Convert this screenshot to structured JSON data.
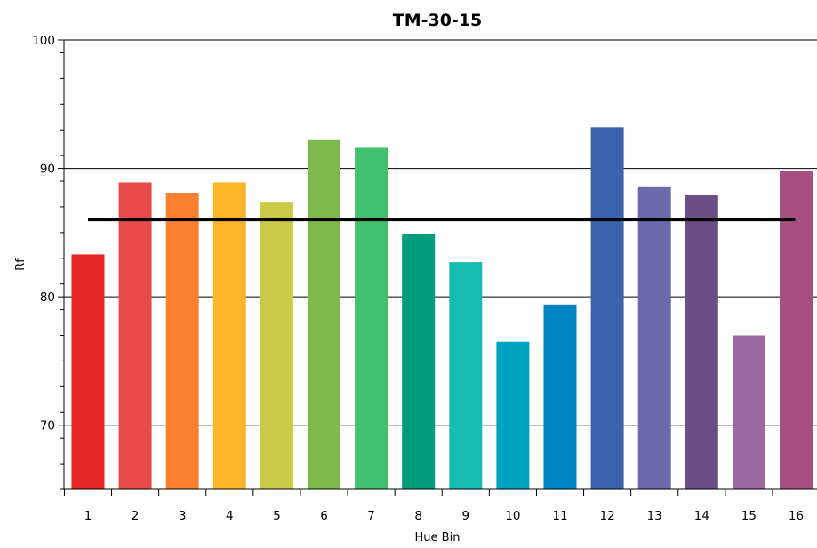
{
  "chart_data": {
    "type": "bar",
    "title": "TM-30-15",
    "xlabel": "Hue Bin",
    "ylabel": "Rf",
    "ylim": [
      65,
      100
    ],
    "yticks": [
      70,
      80,
      90,
      100
    ],
    "grid": true,
    "categories": [
      "1",
      "2",
      "3",
      "4",
      "5",
      "6",
      "7",
      "8",
      "9",
      "10",
      "11",
      "12",
      "13",
      "14",
      "15",
      "16"
    ],
    "values": [
      83.3,
      88.9,
      88.1,
      88.9,
      87.4,
      92.2,
      91.6,
      84.9,
      82.7,
      76.5,
      79.4,
      93.2,
      88.6,
      87.9,
      77.0,
      89.8
    ],
    "bar_colors": [
      "#e62828",
      "#e74b4b",
      "#fb812e",
      "#ffb529",
      "#cbca46",
      "#7eb94c",
      "#41c06d",
      "#009c7c",
      "#16bcb0",
      "#00a4bf",
      "#0085c3",
      "#3b62aa",
      "#6a6aac",
      "#6b4e85",
      "#9d69a1",
      "#a74f81"
    ],
    "reference_line": {
      "value": 86,
      "color": "#000000"
    }
  }
}
